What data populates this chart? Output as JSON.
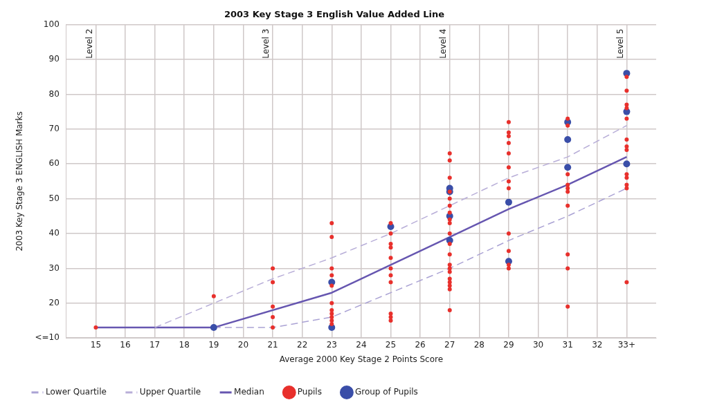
{
  "chart_data": {
    "type": "scatter",
    "title": "2003 Key Stage 3 English Value Added Line",
    "xlabel": "Average 2000 Key Stage 2 Points Score",
    "ylabel": "2003 Key Stage 3 ENGLISH Marks",
    "xlim": [
      14,
      34
    ],
    "xticks": [
      15,
      16,
      17,
      18,
      19,
      20,
      21,
      22,
      23,
      24,
      25,
      26,
      27,
      28,
      29,
      30,
      31,
      32,
      {
        "value": 33,
        "label": "33+"
      }
    ],
    "ylim": [
      10,
      100
    ],
    "yticks": [
      {
        "value": 10,
        "label": "<=10"
      },
      20,
      30,
      40,
      50,
      60,
      70,
      80,
      90,
      100
    ],
    "grid": true,
    "legend": "bottom",
    "annotations": [
      "Level 2",
      "Level 3",
      "Level 4",
      "Level 5"
    ],
    "series": [
      {
        "name": "Lower Quartile",
        "type": "line",
        "color": "#aaa2d4",
        "line_style": "dashed",
        "marker": "none",
        "x": [
          19,
          21,
          23,
          25,
          27,
          29,
          31,
          33
        ],
        "values": [
          13,
          13,
          16,
          23,
          30,
          38,
          45,
          53
        ]
      },
      {
        "name": "Upper Quartile",
        "type": "line",
        "color": "#b8aed8",
        "line_style": "dashed",
        "marker": "none",
        "x": [
          17,
          19,
          21,
          23,
          25,
          27,
          29,
          31,
          33
        ],
        "values": [
          13,
          20,
          27,
          33,
          40,
          48,
          56,
          62,
          71
        ]
      },
      {
        "name": "Median",
        "type": "line",
        "color": "#6656b0",
        "line_style": "solid",
        "marker": "none",
        "x": [
          15,
          19,
          23,
          25,
          27,
          29,
          31,
          33
        ],
        "values": [
          13,
          13,
          23,
          31,
          39,
          47,
          54,
          62
        ]
      },
      {
        "name": "Pupils",
        "type": "scatter",
        "color": "#e8302c",
        "marker": "circle",
        "x": [
          15,
          19,
          21,
          21,
          21,
          21,
          21,
          23,
          23,
          23,
          23,
          23,
          23,
          23,
          23,
          23,
          23,
          23,
          25,
          25,
          25,
          25,
          25,
          25,
          25,
          25,
          25,
          25,
          25,
          27,
          27,
          27,
          27,
          27,
          27,
          27,
          27,
          27,
          27,
          27,
          27,
          27,
          27,
          27,
          27,
          27,
          27,
          27,
          27,
          29,
          29,
          29,
          29,
          29,
          29,
          29,
          29,
          29,
          29,
          29,
          29,
          31,
          31,
          31,
          31,
          31,
          31,
          31,
          31,
          31,
          31,
          33,
          33,
          33,
          33,
          33,
          33,
          33,
          33,
          33,
          33,
          33,
          33,
          33
        ],
        "values": [
          13,
          22,
          30,
          26,
          19,
          16,
          13,
          43,
          39,
          30,
          28,
          25,
          20,
          18,
          17,
          16,
          15,
          14,
          43,
          40,
          37,
          36,
          33,
          30,
          28,
          26,
          17,
          16,
          15,
          63,
          61,
          56,
          52,
          50,
          48,
          46,
          44,
          43,
          40,
          37,
          34,
          31,
          30,
          29,
          27,
          26,
          25,
          24,
          18,
          72,
          69,
          68,
          66,
          63,
          59,
          55,
          53,
          40,
          35,
          31,
          30,
          73,
          71,
          57,
          54,
          53,
          52,
          48,
          34,
          30,
          19,
          85,
          81,
          77,
          76,
          73,
          67,
          65,
          64,
          57,
          56,
          54,
          53,
          26
        ]
      },
      {
        "name": "Group of Pupils",
        "type": "scatter",
        "color": "#3a4ea8",
        "marker": "circle",
        "x": [
          19,
          23,
          23,
          25,
          27,
          27,
          27,
          27,
          29,
          29,
          31,
          31,
          31,
          33,
          33,
          33
        ],
        "values": [
          13,
          26,
          13,
          42,
          53,
          52,
          45,
          38,
          49,
          32,
          72,
          67,
          59,
          86,
          75,
          60
        ]
      }
    ]
  }
}
